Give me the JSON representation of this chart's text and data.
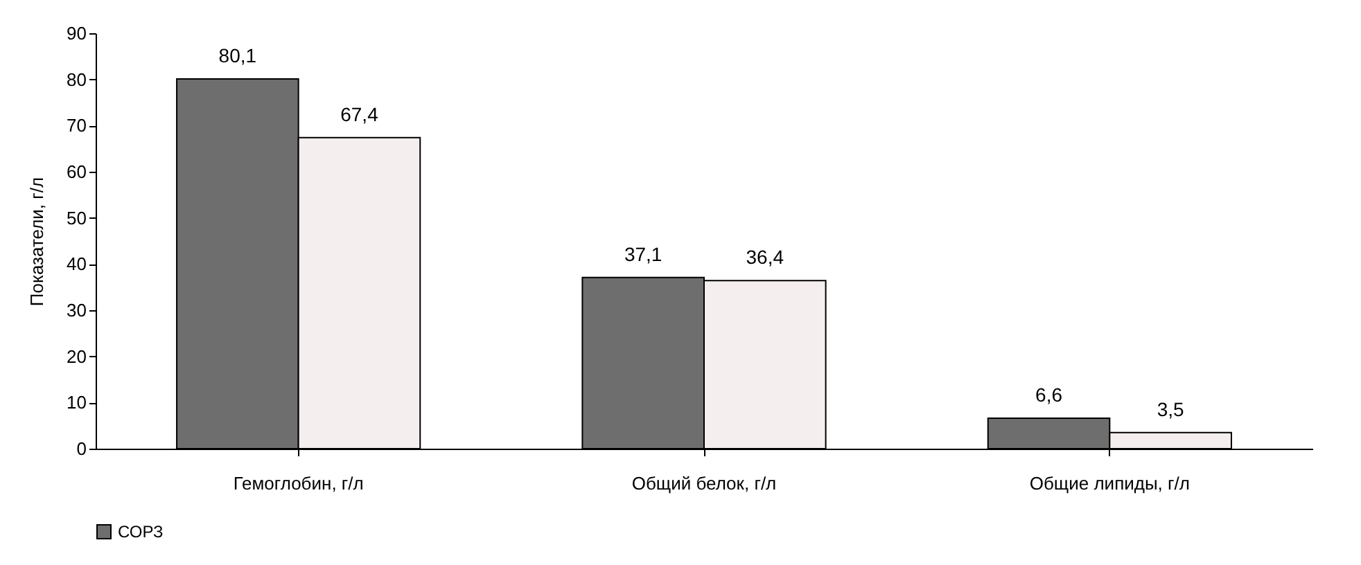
{
  "chart_data": {
    "type": "bar",
    "ylabel": "Показатели, г/л",
    "categories": [
      "Гемоглобин, г/л",
      "Общий белок, г/л",
      "Общие липиды, г/л"
    ],
    "series": [
      {
        "name": "СОРЗ",
        "color": "#6e6e6e",
        "values": [
          80.1,
          37.1,
          6.6
        ],
        "value_labels": [
          "80,1",
          "37,1",
          "6,6"
        ]
      },
      {
        "color": "#f4eeee",
        "values": [
          67.4,
          36.4,
          3.5
        ],
        "value_labels": [
          "67,4",
          "36,4",
          "3,5"
        ]
      }
    ],
    "ylim": [
      0,
      90
    ],
    "yticks": [
      0,
      10,
      20,
      30,
      40,
      50,
      60,
      70,
      80,
      90
    ],
    "grid": false,
    "legend": "bottom"
  }
}
